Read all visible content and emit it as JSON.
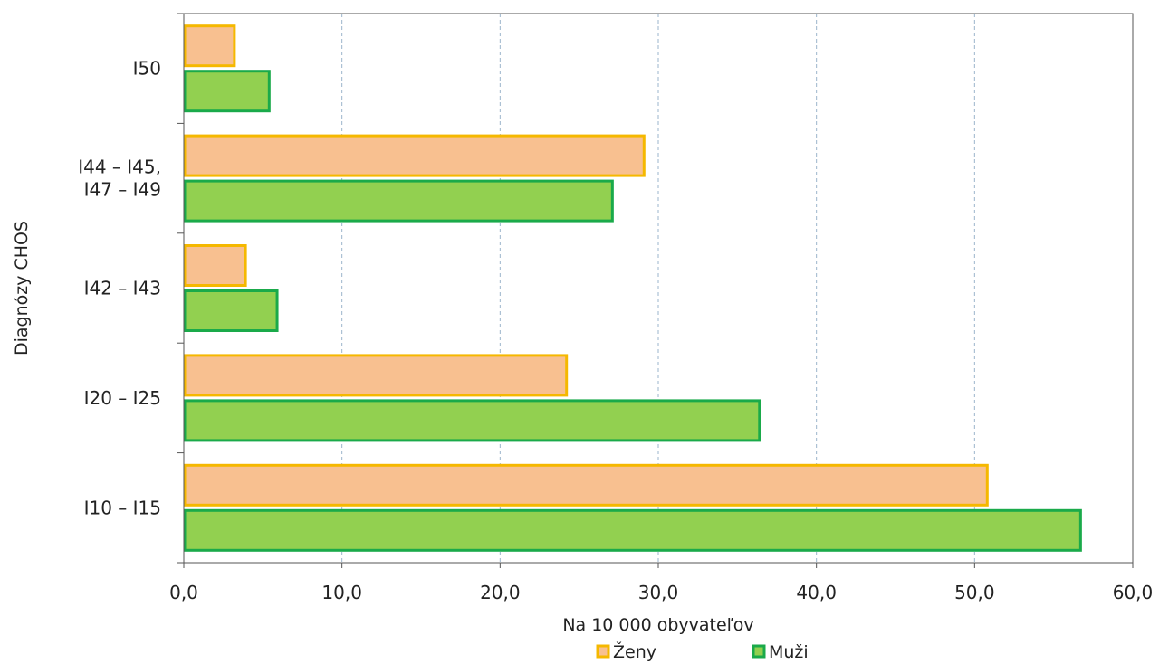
{
  "chart_data": {
    "type": "bar",
    "orientation": "horizontal",
    "categories": [
      "I10 – I15",
      "I20 – I25",
      "I42 – I43",
      "I44 – I45,\nI47 – I49",
      "I50"
    ],
    "category_lines": [
      [
        "I10 – I15"
      ],
      [
        "I20 – I25"
      ],
      [
        "I42 – I43"
      ],
      [
        "I44 – I45,",
        "I47 – I49"
      ],
      [
        "I50"
      ]
    ],
    "series": [
      {
        "name": "Ženy",
        "values": [
          50.8,
          24.2,
          3.9,
          29.1,
          3.2
        ],
        "fill": "#f8c090",
        "stroke": "#f5b800"
      },
      {
        "name": "Muži",
        "values": [
          56.7,
          36.4,
          5.9,
          27.1,
          5.4
        ],
        "fill": "#92d050",
        "stroke": "#1aaa4a"
      }
    ],
    "xlabel": "Na 10 000 obyvateľov",
    "ylabel": "Diagnózy CHOS",
    "xlim": [
      0,
      60
    ],
    "xticks": [
      "0,0",
      "10,0",
      "20,0",
      "30,0",
      "40,0",
      "50,0",
      "60,0"
    ],
    "grid": "vertical dashed",
    "legend_position": "bottom-center"
  }
}
